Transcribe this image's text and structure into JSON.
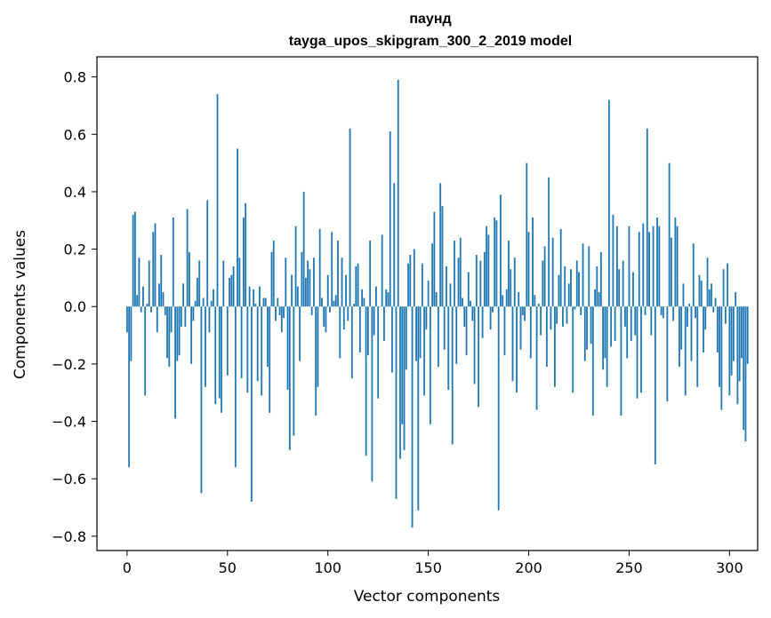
{
  "chart_data": {
    "type": "bar",
    "title_lines": [
      "паунд",
      "tayga_upos_skipgram_300_2_2019 model"
    ],
    "xlabel": "Vector components",
    "ylabel": "Components values",
    "xlim": [
      -15,
      314
    ],
    "ylim": [
      -0.85,
      0.87
    ],
    "xticks": [
      0,
      50,
      100,
      150,
      200,
      250,
      300
    ],
    "xtick_labels": [
      "0",
      "50",
      "100",
      "150",
      "200",
      "250",
      "300"
    ],
    "yticks": [
      -0.8,
      -0.6,
      -0.4,
      -0.2,
      0.0,
      0.2,
      0.4,
      0.6,
      0.8
    ],
    "ytick_labels": [
      "−0.8",
      "−0.6",
      "−0.4",
      "−0.2",
      "0.0",
      "0.2",
      "0.4",
      "0.6",
      "0.8"
    ],
    "bar_color": "#1f77b4",
    "grid": false,
    "x_start": 0,
    "values": [
      -0.09,
      -0.56,
      -0.19,
      0.32,
      0.33,
      0.04,
      0.17,
      -0.02,
      0.07,
      -0.31,
      0.01,
      0.16,
      -0.02,
      0.26,
      0.29,
      -0.09,
      0.08,
      0.18,
      0.05,
      -0.03,
      -0.18,
      -0.21,
      -0.09,
      0.31,
      -0.39,
      -0.19,
      -0.17,
      -0.07,
      0.08,
      -0.07,
      0.34,
      0.19,
      -0.2,
      -0.05,
      0.02,
      0.1,
      0.16,
      -0.65,
      0.03,
      -0.28,
      0.37,
      -0.09,
      0.02,
      0.06,
      -0.34,
      0.74,
      -0.32,
      -0.37,
      0.16,
      0.0,
      -0.24,
      0.1,
      0.11,
      0.14,
      -0.56,
      0.55,
      0.17,
      -0.25,
      0.31,
      0.36,
      -0.3,
      0.07,
      -0.68,
      0.06,
      0.01,
      -0.26,
      0.07,
      -0.31,
      0.03,
      0.03,
      -0.21,
      -0.37,
      0.19,
      0.23,
      -0.05,
      0.03,
      -0.03,
      -0.09,
      -0.04,
      0.17,
      -0.29,
      -0.5,
      0.11,
      -0.45,
      0.28,
      0.07,
      -0.19,
      0.19,
      0.4,
      0.1,
      0.16,
      0.13,
      -0.03,
      0.17,
      -0.38,
      -0.28,
      0.27,
      0.03,
      -0.07,
      -0.09,
      0.11,
      -0.02,
      0.26,
      0.02,
      0.04,
      0.23,
      -0.18,
      0.17,
      -0.08,
      0.11,
      -0.05,
      0.62,
      -0.25,
      0.01,
      0.14,
      0.15,
      -0.16,
      0.06,
      0.03,
      -0.52,
      -0.17,
      0.23,
      -0.61,
      -0.1,
      0.07,
      -0.32,
      0.0,
      0.25,
      -0.12,
      0.06,
      0.05,
      0.61,
      -0.23,
      0.43,
      -0.67,
      0.79,
      -0.53,
      -0.41,
      -0.5,
      -0.22,
      0.15,
      0.18,
      -0.77,
      0.2,
      -0.19,
      -0.71,
      -0.18,
      0.15,
      -0.31,
      -0.08,
      0.09,
      -0.41,
      0.22,
      0.33,
      0.05,
      -0.21,
      0.43,
      0.35,
      -0.15,
      0.14,
      -0.29,
      0.08,
      -0.48,
      0.23,
      -0.2,
      0.17,
      0.24,
      0.03,
      -0.07,
      -0.17,
      0.12,
      0.02,
      -0.05,
      -0.27,
      0.18,
      -0.35,
      0.16,
      -0.11,
      0.19,
      0.28,
      0.25,
      -0.08,
      -0.02,
      0.31,
      0.3,
      -0.71,
      0.39,
      0.04,
      -0.17,
      0.06,
      0.23,
      0.13,
      -0.26,
      0.17,
      -0.3,
      0.05,
      -0.15,
      -0.03,
      -0.05,
      0.5,
      0.26,
      -0.18,
      0.31,
      0.04,
      -0.36,
      0.01,
      -0.1,
      0.16,
      0.21,
      -0.21,
      0.45,
      -0.08,
      0.24,
      -0.28,
      -0.06,
      0.11,
      0.27,
      -0.07,
      0.14,
      -0.06,
      0.08,
      0.13,
      -0.3,
      -0.01,
      0.16,
      0.12,
      -0.03,
      0.22,
      -0.19,
      -0.15,
      0.21,
      -0.13,
      -0.38,
      0.06,
      0.14,
      0.05,
      0.19,
      -0.22,
      -0.18,
      -0.28,
      0.72,
      -0.14,
      0.32,
      -0.12,
      0.28,
      0.13,
      -0.38,
      0.16,
      -0.07,
      -0.18,
      0.28,
      -0.12,
      0.12,
      -0.1,
      -0.32,
      0.26,
      -0.3,
      0.29,
      -0.03,
      0.62,
      0.26,
      -0.1,
      0.28,
      -0.55,
      0.31,
      0.28,
      -0.03,
      -0.04,
      0.0,
      -0.33,
      0.5,
      0.24,
      -0.05,
      0.31,
      0.28,
      -0.21,
      -0.15,
      0.08,
      -0.31,
      -0.07,
      0.01,
      -0.19,
      0.22,
      -0.04,
      -0.28,
      0.11,
      0.09,
      -0.16,
      -0.08,
      0.17,
      0.06,
      0.08,
      -0.02,
      0.03,
      -0.16,
      -0.28,
      -0.36,
      0.13,
      -0.06,
      0.15,
      -0.31,
      -0.24,
      -0.19,
      0.05,
      -0.34,
      -0.26,
      -0.18,
      -0.43,
      -0.47,
      -0.2
    ]
  }
}
